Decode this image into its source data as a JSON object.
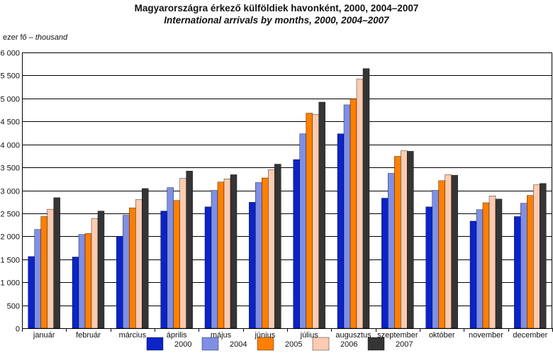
{
  "title": "Magyarországra érkező külföldiek havonként, 2000, 2004–2007",
  "subtitle": "International arrivals by months, 2000, 2004–2007",
  "unit_hu": "ezer fő –",
  "unit_en": "thousand",
  "colors": {
    "2000": "#0a24c8",
    "2004": "#7f8fe6",
    "2005": "#ff7f00",
    "2006": "#ffcbb0",
    "2007": "#353535",
    "grid": "#000000",
    "axis": "#000000"
  },
  "chart_data": {
    "type": "bar",
    "title": "Magyarországra érkező külföldiek havonként, 2000, 2004–2007",
    "subtitle": "International arrivals by months, 2000, 2004–2007",
    "ylabel": "ezer fő – thousand",
    "xlabel": "",
    "ylim": [
      0,
      6000
    ],
    "yticks": [
      0,
      500,
      1000,
      1500,
      2000,
      2500,
      3000,
      3500,
      4000,
      4500,
      5000,
      5500,
      6000
    ],
    "ytick_labels": [
      "0",
      "500",
      "1 000",
      "1 500",
      "2 000",
      "2 500",
      "3 000",
      "3 500",
      "4 000",
      "4 500",
      "5 000",
      "5 500",
      "6 000"
    ],
    "grid": true,
    "legend_position": "bottom",
    "categories": [
      "január",
      "február",
      "március",
      "április",
      "május",
      "június",
      "július",
      "augusztus",
      "szeptember",
      "október",
      "november",
      "december"
    ],
    "series": [
      {
        "name": "2000",
        "values": [
          1560,
          1550,
          2000,
          2550,
          2640,
          2740,
          3670,
          4230,
          2830,
          2640,
          2330,
          2430
        ]
      },
      {
        "name": "2004",
        "values": [
          2150,
          2040,
          2460,
          3060,
          3000,
          3170,
          4230,
          4860,
          3370,
          3000,
          2580,
          2720
        ]
      },
      {
        "name": "2005",
        "values": [
          2430,
          2060,
          2620,
          2780,
          3180,
          3270,
          4680,
          4990,
          3740,
          3210,
          2730,
          2890
        ]
      },
      {
        "name": "2006",
        "values": [
          2590,
          2390,
          2800,
          3260,
          3250,
          3450,
          4650,
          5420,
          3860,
          3340,
          2880,
          3120
        ]
      },
      {
        "name": "2007",
        "values": [
          2840,
          2550,
          3040,
          3420,
          3340,
          3570,
          4920,
          5650,
          3850,
          3330,
          2810,
          3150
        ]
      }
    ]
  }
}
